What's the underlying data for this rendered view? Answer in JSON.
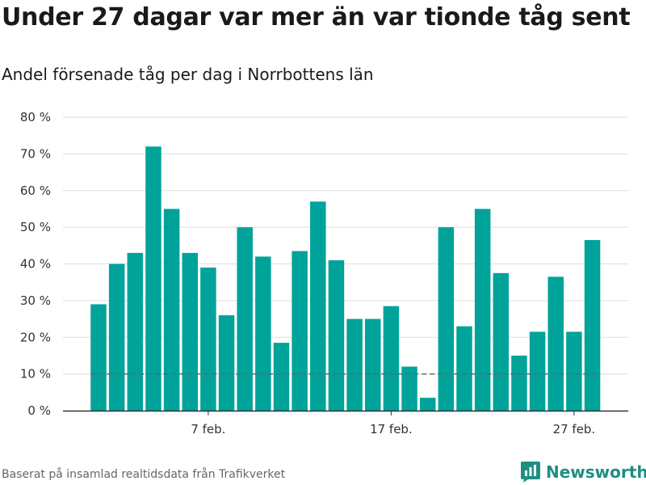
{
  "title": "Under 27 dagar var mer än var tionde tåg sent",
  "subtitle": "Andel försenade tåg per dag i Norrbottens län",
  "source": "Baserat på insamlad realtidsdata från Trafikverket",
  "brand": {
    "name": "Newsworthy",
    "icon": "newsworthy-logo-icon",
    "color": "#1f8f82"
  },
  "chart_data": {
    "type": "bar",
    "x": [
      1,
      2,
      3,
      4,
      5,
      6,
      7,
      8,
      9,
      10,
      11,
      12,
      13,
      14,
      15,
      16,
      17,
      18,
      19,
      20,
      21,
      22,
      23,
      24,
      25,
      26,
      27,
      28
    ],
    "values": [
      29,
      40,
      43,
      72,
      55,
      43,
      39,
      26,
      50,
      42,
      18.5,
      43.5,
      57,
      41,
      25,
      25,
      28.5,
      12,
      3.5,
      50,
      23,
      55,
      37.5,
      15,
      21.5,
      36.5,
      21.5,
      46.5
    ],
    "ylim": [
      0,
      80
    ],
    "yticks": [
      0,
      10,
      20,
      30,
      40,
      50,
      60,
      70,
      80
    ],
    "ytick_labels": [
      "0 %",
      "10 %",
      "20 %",
      "30 %",
      "40 %",
      "50 %",
      "60 %",
      "70 %",
      "80 %"
    ],
    "xticks": [
      7,
      17,
      27
    ],
    "xtick_labels": [
      "7 feb.",
      "17 feb.",
      "27 feb."
    ],
    "reference_line": {
      "value": 10,
      "style": "dashed",
      "color": "#666666"
    },
    "bar_color": "#00a39a",
    "grid": true
  }
}
